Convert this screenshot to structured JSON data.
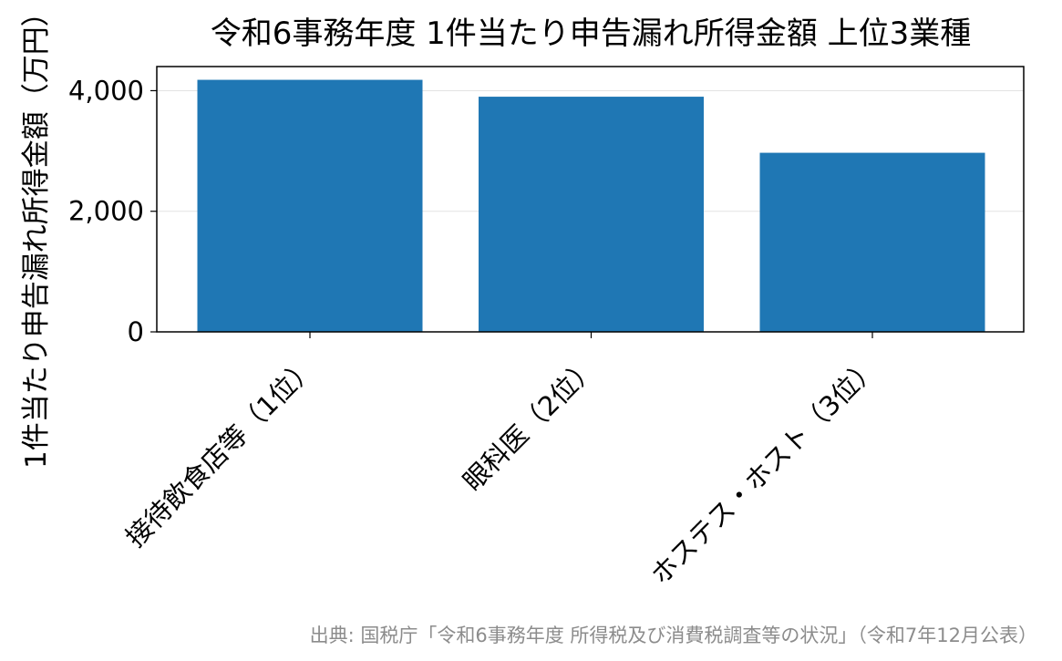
{
  "colors": {
    "bar": "#1f77b4",
    "grid": "#e3e3e3",
    "source": "#8c8c8c"
  },
  "chart_data": {
    "type": "bar",
    "title": "令和6事務年度 1件当たり申告漏れ所得金額 上位3業種",
    "ylabel": "1件当たり申告漏れ所得金額（万円）",
    "xlabel": "",
    "categories": [
      "接待飲食店等（1位）",
      "眼科医（2位）",
      "ホステス・ホスト（3位）"
    ],
    "values": [
      4180,
      3900,
      2970
    ],
    "ylim": [
      0,
      4400
    ],
    "yticks": [
      0,
      2000,
      4000
    ],
    "ytick_labels": [
      "0",
      "2,000",
      "4,000"
    ],
    "grid": "horizontal",
    "source": "出典: 国税庁「令和6事務年度 所得税及び消費税調査等の状況」（令和7年12月公表）"
  }
}
